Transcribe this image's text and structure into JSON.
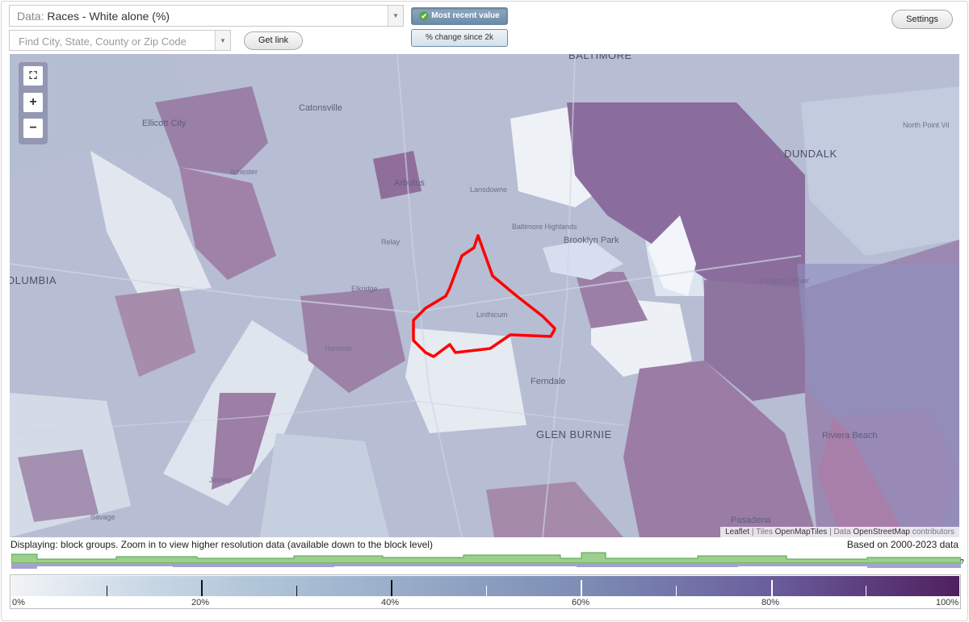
{
  "toolbar": {
    "data_prefix": "Data:",
    "data_value": "Races - White alone (%)",
    "search_placeholder": "Find City, State, County or Zip Code",
    "get_link": "Get link",
    "settings": "Settings",
    "toggle_recent": "Most recent value",
    "toggle_change": "% change since 2k"
  },
  "map": {
    "labels": {
      "baltimore": "BALTIMORE",
      "catonsville": "Catonsville",
      "ellicott_city": "Ellicott City",
      "north_point": "North Point Vil",
      "dundalk": "DUNDALK",
      "ilchester": "Ilchester",
      "arbutus": "Arbutus",
      "lansdowne": "Lansdowne",
      "baltimore_highlands": "Baltimore Highlands",
      "brooklyn_park": "Brooklyn Park",
      "relay": "Relay",
      "columbia": "OLUMBIA",
      "elkridge": "Elkridge",
      "patapsco_river": "Patapsco River",
      "linthicum": "Linthicum",
      "hanover": "Hanover",
      "ferndale": "Ferndale",
      "glen_burnie": "GLEN BURNIE",
      "riviera_beach": "Riviera Beach",
      "jessup": "Jessup",
      "savage": "Savage",
      "pasadena": "Pasadena"
    },
    "attribution": {
      "leaflet": "Leaflet",
      "tiles_prefix": "Tiles",
      "tiles": "OpenMapTiles",
      "data_prefix": "Data",
      "data": "OpenStreetMap",
      "suffix": "contributors"
    },
    "zoom_controls": [
      "fullscreen-icon",
      "zoom-in-icon",
      "zoom-out-icon"
    ],
    "highlight_color": "#ff0000"
  },
  "status": {
    "display_note": "Displaying: block groups. Zoom in to view higher resolution data (available down to the block level)",
    "based_on": "Based on 2000-2023 data",
    "help": "?"
  },
  "legend": {
    "labels": [
      "0%",
      "20%",
      "40%",
      "60%",
      "80%",
      "100%"
    ],
    "colors": {
      "low": "#f1f4f7",
      "high": "#4f1f5e"
    }
  }
}
